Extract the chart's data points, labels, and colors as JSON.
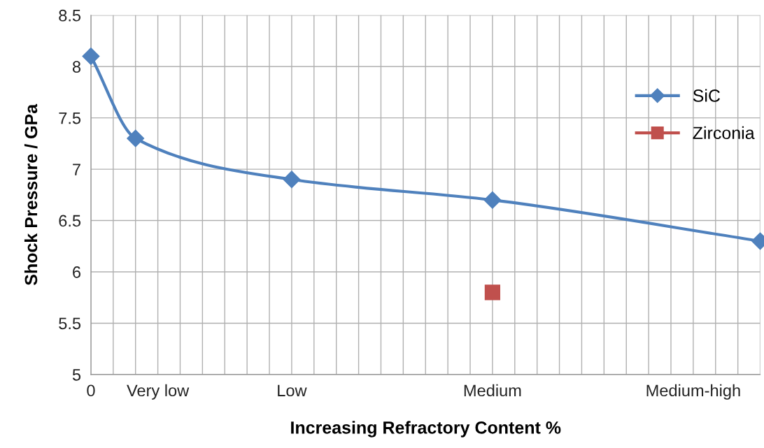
{
  "chart_data": {
    "type": "line",
    "xlabel": "Increasing Refractory Content %",
    "ylabel": "Shock Pressure / GPa",
    "categories": [
      "0",
      null,
      null,
      "Very low",
      null,
      null,
      null,
      null,
      null,
      "Low",
      null,
      null,
      null,
      null,
      null,
      null,
      null,
      null,
      "Medium",
      null,
      null,
      null,
      null,
      null,
      null,
      null,
      null,
      "Medium-high",
      null,
      null,
      null
    ],
    "series": [
      {
        "name": "SiC",
        "color": "#4f81bd",
        "marker": "diamond",
        "values": [
          8.1,
          null,
          7.3,
          null,
          null,
          null,
          null,
          null,
          null,
          6.9,
          null,
          null,
          null,
          null,
          null,
          null,
          null,
          null,
          6.7,
          null,
          null,
          null,
          null,
          null,
          null,
          null,
          null,
          null,
          null,
          null,
          6.3
        ]
      },
      {
        "name": "Zirconia",
        "color": "#c0504d",
        "type": "scatter",
        "marker": "square",
        "values": [
          null,
          null,
          null,
          null,
          null,
          null,
          null,
          null,
          null,
          null,
          null,
          null,
          null,
          null,
          null,
          null,
          null,
          null,
          5.8,
          null,
          null,
          null,
          null,
          null,
          null,
          null,
          null,
          null,
          null,
          null,
          null
        ]
      }
    ],
    "ylim": [
      5,
      8.5
    ],
    "yticks": [
      5,
      5.5,
      6,
      6.5,
      7,
      7.5,
      8,
      8.5
    ],
    "grid": true,
    "legend": "right"
  }
}
